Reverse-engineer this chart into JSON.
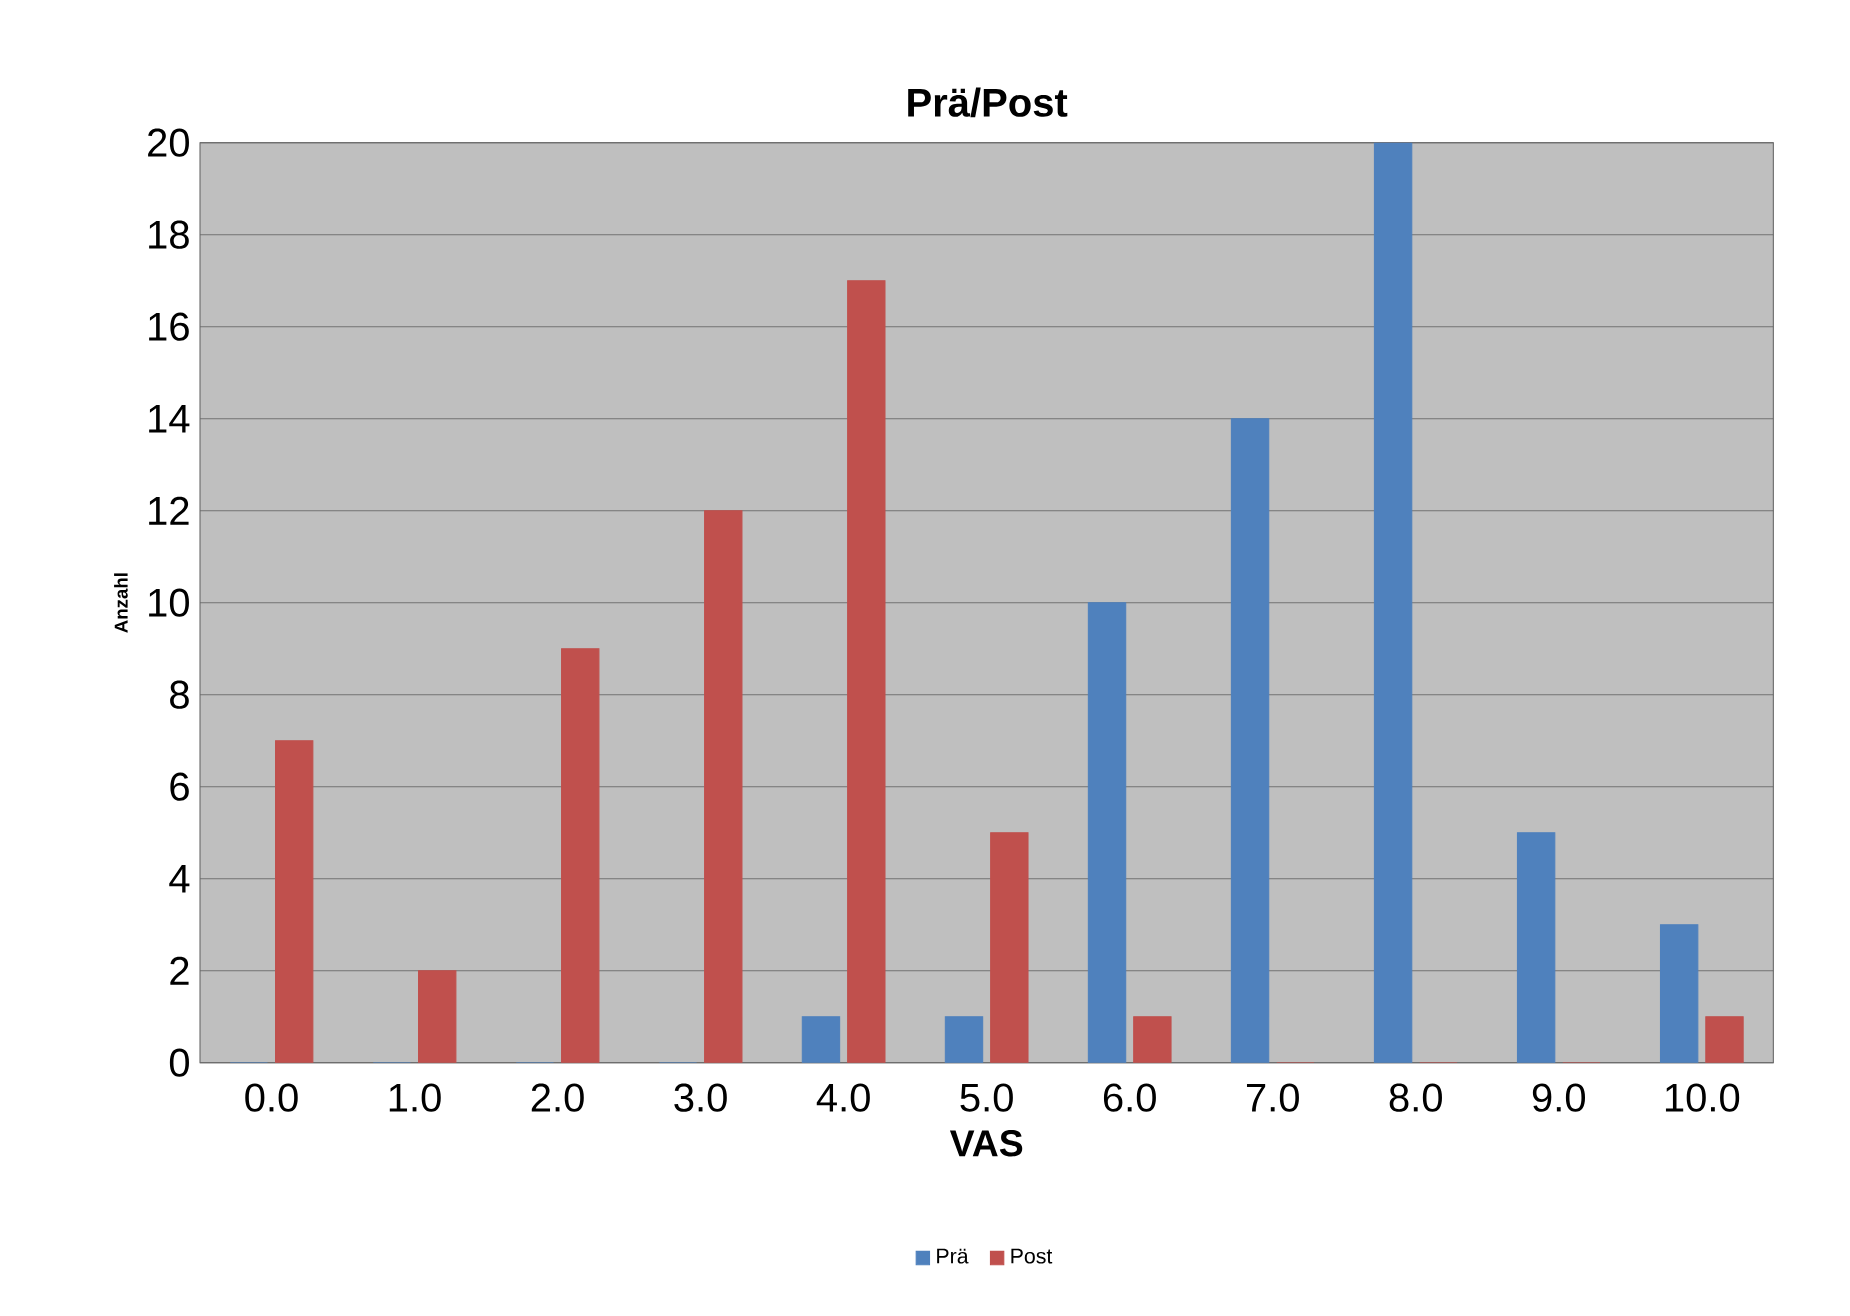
{
  "chart_data": {
    "type": "bar",
    "title": "Prä/Post",
    "xlabel": "VAS",
    "ylabel": "Anzahl",
    "categories": [
      "0.0",
      "1.0",
      "2.0",
      "3.0",
      "4.0",
      "5.0",
      "6.0",
      "7.0",
      "8.0",
      "9.0",
      "10.0"
    ],
    "series": [
      {
        "name": "Prä",
        "color": "#4f81bd",
        "values": [
          0,
          0,
          0,
          0,
          1,
          1,
          10,
          14,
          20,
          5,
          3
        ]
      },
      {
        "name": "Post",
        "color": "#c0504d",
        "values": [
          7,
          2,
          9,
          12,
          17,
          5,
          1,
          0,
          0,
          0,
          1
        ]
      }
    ],
    "ylim": [
      0,
      20
    ],
    "yticks": [
      0,
      2,
      4,
      6,
      8,
      10,
      12,
      14,
      16,
      18,
      20
    ],
    "grid": "y",
    "legend": "bottom"
  }
}
